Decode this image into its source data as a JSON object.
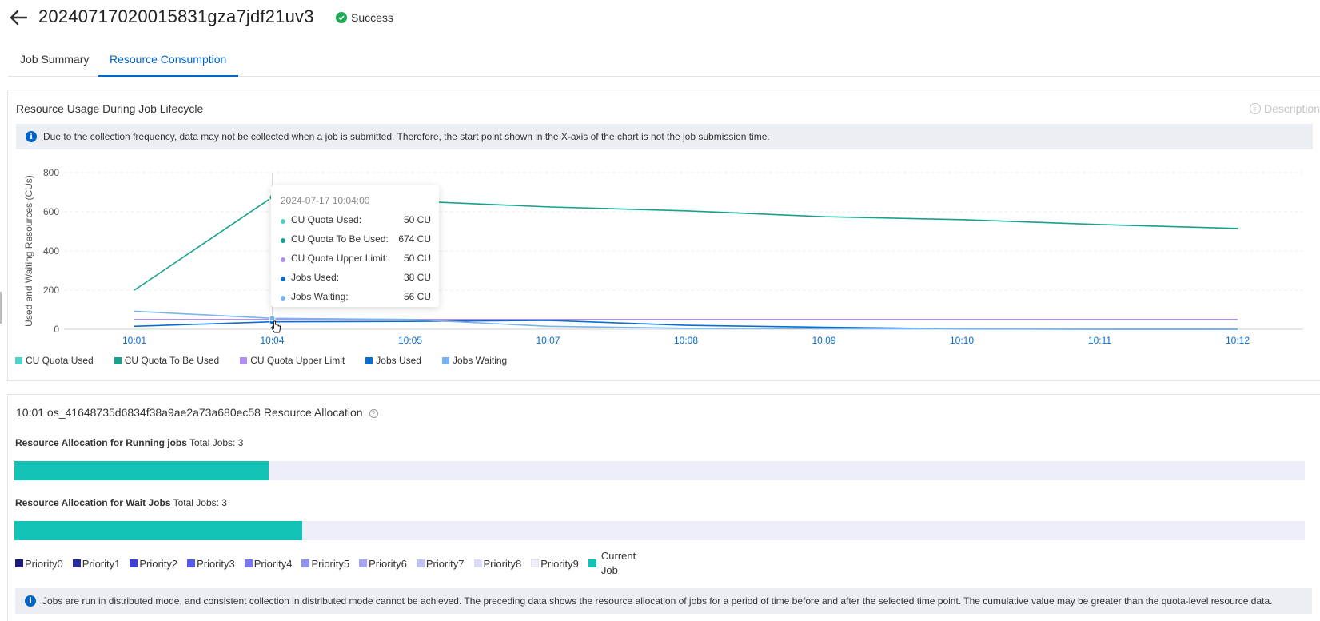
{
  "header": {
    "back_icon": "arrow-left-icon",
    "job_id": "20240717020015831gza7jdf21uv3",
    "status": "Success",
    "status_color": "#1eaa52"
  },
  "tabs": [
    {
      "label": "Job Summary",
      "active": false
    },
    {
      "label": "Resource Consumption",
      "active": true
    }
  ],
  "usage_panel": {
    "title": "Resource Usage During Job Lifecycle",
    "description_link": "Description",
    "notice": "Due to the collection frequency, data may not be collected when a job is submitted. Therefore, the start point shown in the X-axis of the chart is not the job submission time."
  },
  "chart_data": {
    "type": "line",
    "title": "",
    "ylabel": "Used and Waiting Resources (CUs)",
    "xlabel": "",
    "categories": [
      "10:01",
      "10:04",
      "10:05",
      "10:07",
      "10:08",
      "10:09",
      "10:10",
      "10:11",
      "10:12"
    ],
    "yticks": [
      0,
      200,
      400,
      600,
      800
    ],
    "ylim": [
      0,
      800
    ],
    "grid": true,
    "legend_position": "bottom-left",
    "series": [
      {
        "name": "CU Quota Used",
        "color": "#4fd3c8",
        "values": [
          50,
          50,
          50,
          50,
          50,
          50,
          50,
          50,
          50
        ]
      },
      {
        "name": "CU Quota To Be Used",
        "color": "#14a38b",
        "values": [
          200,
          674,
          655,
          625,
          605,
          575,
          560,
          535,
          515
        ]
      },
      {
        "name": "CU Quota Upper Limit",
        "color": "#b18ff0",
        "values": [
          50,
          50,
          50,
          50,
          50,
          50,
          50,
          50,
          50
        ]
      },
      {
        "name": "Jobs Used",
        "color": "#0a6ed1",
        "values": [
          15,
          38,
          40,
          45,
          20,
          10,
          2,
          0,
          0
        ]
      },
      {
        "name": "Jobs Waiting",
        "color": "#78b4ef",
        "values": [
          92,
          56,
          50,
          15,
          5,
          3,
          2,
          1,
          0
        ]
      }
    ],
    "tooltip": {
      "time": "2024-07-17 10:04:00",
      "rows": [
        {
          "label": "CU Quota Used:",
          "value": "50 CU",
          "color": "#4fd3c8"
        },
        {
          "label": "CU Quota To Be Used:",
          "value": "674 CU",
          "color": "#14a38b"
        },
        {
          "label": "CU Quota Upper Limit:",
          "value": "50 CU",
          "color": "#b18ff0"
        },
        {
          "label": "Jobs Used:",
          "value": "38 CU",
          "color": "#0a6ed1"
        },
        {
          "label": "Jobs Waiting:",
          "value": "56 CU",
          "color": "#78b4ef"
        }
      ]
    }
  },
  "allocation": {
    "title": "10:01 os_41648735d6834f38a9ae2a73a680ec58 Resource Allocation",
    "running": {
      "label": "Resource Allocation for Running jobs",
      "total": "Total Jobs: 3",
      "fraction": 0.197
    },
    "wait": {
      "label": "Resource Allocation for Wait Jobs",
      "total": "Total Jobs: 3",
      "fraction": 0.223
    },
    "priorities": [
      {
        "label": "Priority0",
        "color": "#1c1a7a"
      },
      {
        "label": "Priority1",
        "color": "#2a2a9f"
      },
      {
        "label": "Priority2",
        "color": "#3f3fd0"
      },
      {
        "label": "Priority3",
        "color": "#5959e8"
      },
      {
        "label": "Priority4",
        "color": "#7a78ee"
      },
      {
        "label": "Priority5",
        "color": "#9391f0"
      },
      {
        "label": "Priority6",
        "color": "#a8a6f3"
      },
      {
        "label": "Priority7",
        "color": "#c2c1f6"
      },
      {
        "label": "Priority8",
        "color": "#dcdbf9"
      },
      {
        "label": "Priority9",
        "color": "#eeeefb"
      }
    ],
    "current_job": {
      "label": "Current Job",
      "color": "#12c2b6"
    },
    "notice": "Jobs are run in distributed mode, and consistent collection in distributed mode cannot be achieved. The preceding data shows the resource allocation of jobs for a period of time before and after the selected time point. The cumulative value may be greater than the quota-level resource data."
  }
}
